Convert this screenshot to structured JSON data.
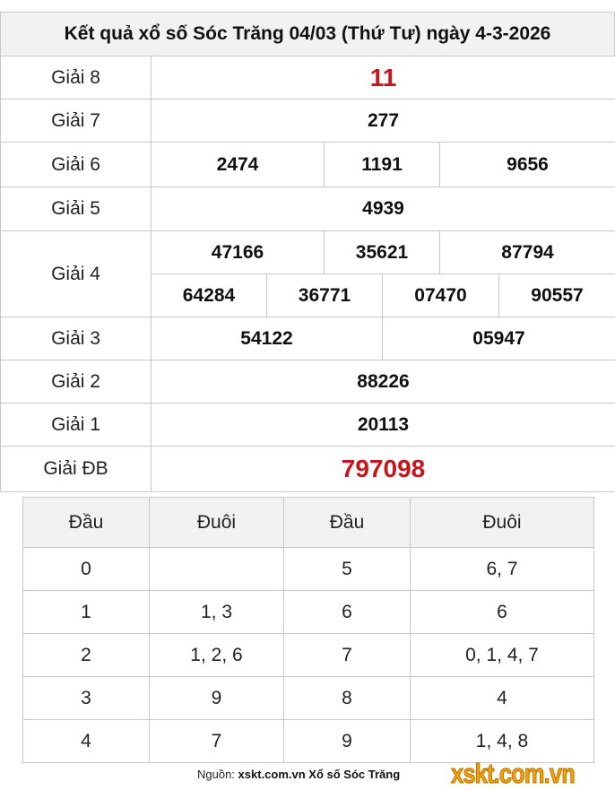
{
  "title": "Kết quả xổ số Sóc Trăng 04/03 (Thứ Tư) ngày 4-3-2026",
  "prizes": {
    "g8": {
      "label": "Giải 8",
      "values": [
        "11"
      ]
    },
    "g7": {
      "label": "Giải 7",
      "values": [
        "277"
      ]
    },
    "g6": {
      "label": "Giải 6",
      "values": [
        "2474",
        "1191",
        "9656"
      ]
    },
    "g5": {
      "label": "Giải 5",
      "values": [
        "4939"
      ]
    },
    "g4": {
      "label": "Giải 4",
      "values": [
        "47166",
        "35621",
        "87794",
        "64284",
        "36771",
        "07470",
        "90557"
      ]
    },
    "g3": {
      "label": "Giải 3",
      "values": [
        "54122",
        "05947"
      ]
    },
    "g2": {
      "label": "Giải 2",
      "values": [
        "88226"
      ]
    },
    "g1": {
      "label": "Giải 1",
      "values": [
        "20113"
      ]
    },
    "gdb": {
      "label": "Giải ĐB",
      "values": [
        "797098"
      ]
    }
  },
  "loto": {
    "headers": [
      "Đầu",
      "Đuôi",
      "Đầu",
      "Đuôi"
    ],
    "rows": [
      [
        "0",
        "",
        "5",
        "6, 7"
      ],
      [
        "1",
        "1, 3",
        "6",
        "6"
      ],
      [
        "2",
        "1, 2, 6",
        "7",
        "0, 1, 4, 7"
      ],
      [
        "3",
        "9",
        "8",
        "4"
      ],
      [
        "4",
        "7",
        "9",
        "1, 4, 8"
      ]
    ]
  },
  "footer": {
    "prefix": "Nguồn:",
    "source": "xskt.com.vn Xổ số Sóc Trăng"
  },
  "logo": "xskt.com.vn",
  "colors": {
    "special": "#c4161c",
    "logo": "#f5a300"
  }
}
